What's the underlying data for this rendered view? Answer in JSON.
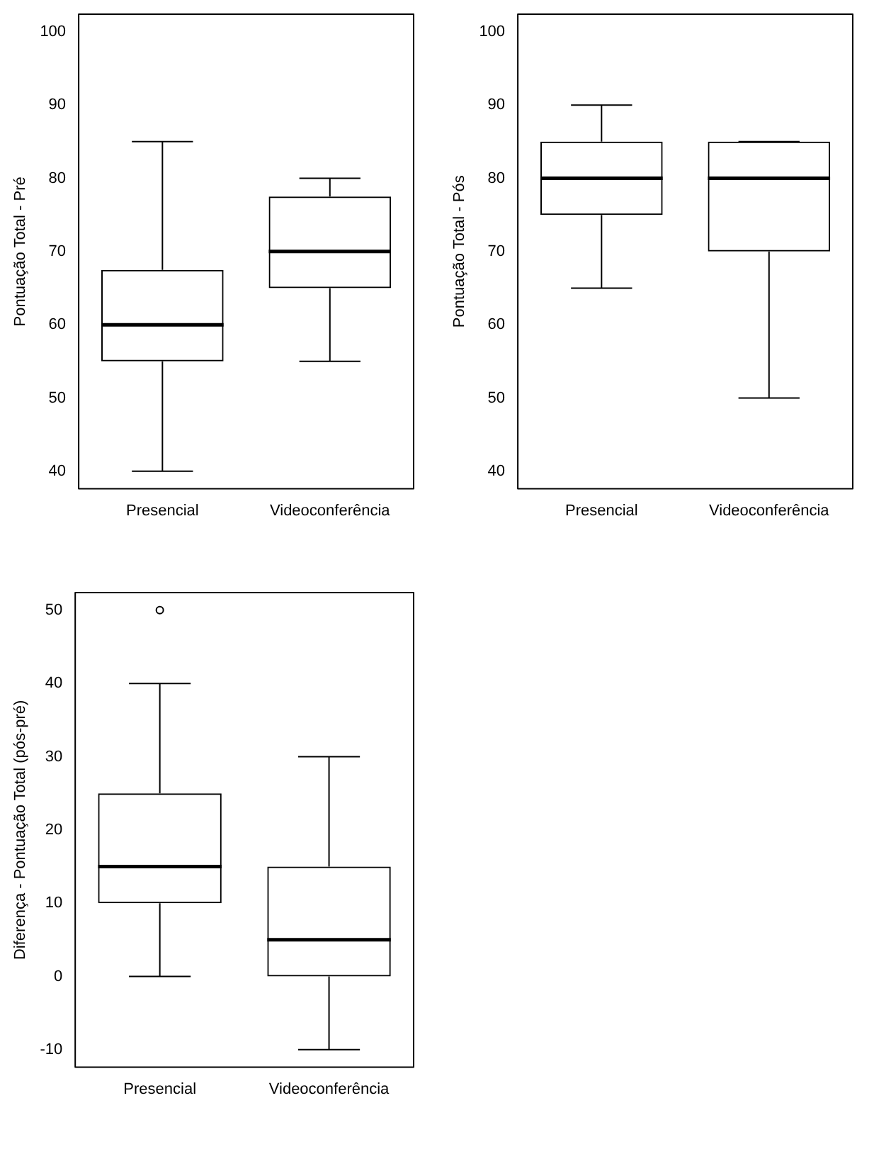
{
  "chart_data": [
    {
      "type": "box",
      "ylabel": "Pontuação Total - Pré",
      "categories": [
        "Presencial",
        "Videoconferência"
      ],
      "ylim": [
        37.6,
        102.4
      ],
      "yticks": [
        40,
        50,
        60,
        70,
        80,
        90,
        100
      ],
      "boxes": [
        {
          "low": 40,
          "q1": 55,
          "median": 60,
          "q3": 67.5,
          "high": 85
        },
        {
          "low": 55,
          "q1": 65,
          "median": 70,
          "q3": 77.5,
          "high": 80
        }
      ]
    },
    {
      "type": "box",
      "ylabel": "Pontuação Total - Pós",
      "categories": [
        "Presencial",
        "Videoconferência"
      ],
      "ylim": [
        37.6,
        102.4
      ],
      "yticks": [
        40,
        50,
        60,
        70,
        80,
        90,
        100
      ],
      "boxes": [
        {
          "low": 65,
          "q1": 75,
          "median": 80,
          "q3": 85,
          "high": 90
        },
        {
          "low": 50,
          "q1": 70,
          "median": 80,
          "q3": 85,
          "high": 85
        }
      ]
    },
    {
      "type": "box",
      "ylabel": "Diferença - Pontuação Total (pós-pré)",
      "categories": [
        "Presencial",
        "Videoconferência"
      ],
      "ylim": [
        -12.4,
        52.4
      ],
      "yticks": [
        -10,
        0,
        10,
        20,
        30,
        40,
        50
      ],
      "boxes": [
        {
          "low": 0,
          "q1": 10,
          "median": 15,
          "q3": 25,
          "high": 40,
          "outliers": [
            50
          ]
        },
        {
          "low": -10,
          "q1": 0,
          "median": 5,
          "q3": 15,
          "high": 30
        }
      ]
    }
  ]
}
